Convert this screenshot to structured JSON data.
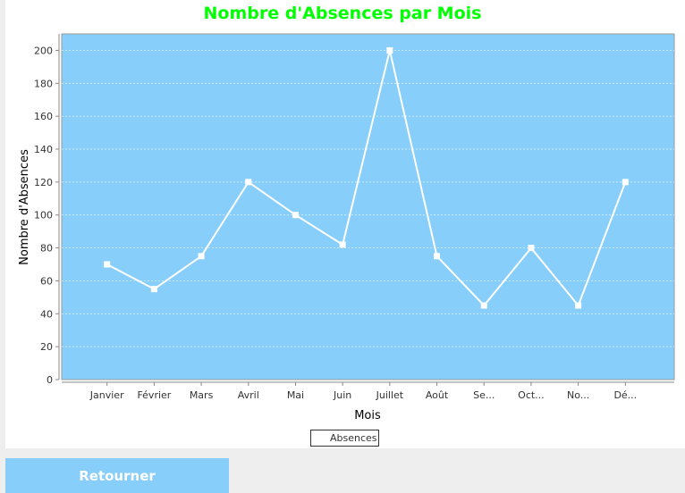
{
  "chart_data": {
    "type": "line",
    "title": "Nombre d'Absences par Mois",
    "xlabel": "Mois",
    "ylabel": "Nombre d'Absences",
    "categories": [
      "Janvier",
      "Février",
      "Mars",
      "Avril",
      "Mai",
      "Juin",
      "Juillet",
      "Août",
      "Se...",
      "Oct...",
      "No...",
      "Dé..."
    ],
    "series": [
      {
        "name": "Absences",
        "values": [
          70,
          55,
          75,
          120,
          100,
          82,
          200,
          75,
          45,
          80,
          45,
          120
        ]
      }
    ],
    "ylim": [
      0,
      210
    ],
    "yticks": [
      "0",
      "20",
      "40",
      "60",
      "80",
      "100",
      "120",
      "140",
      "160",
      "180",
      "200"
    ],
    "grid": true,
    "legend_position": "bottom-center",
    "colors": {
      "title": "#00ff00",
      "plot_background": "#87cefa",
      "series_line": "#ffffff",
      "gridline": "#ffffff"
    }
  },
  "actions": {
    "back_label": "Retourner"
  }
}
